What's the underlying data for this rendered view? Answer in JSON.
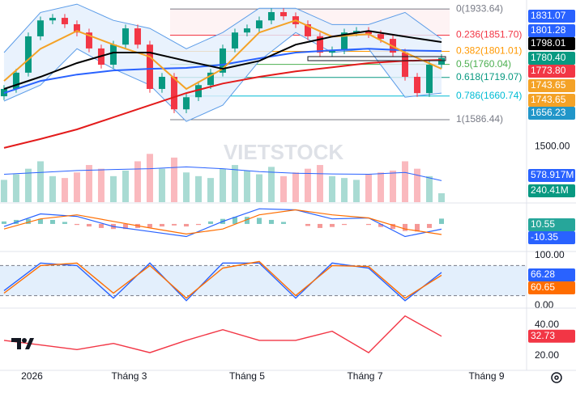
{
  "chart_data": [
    {
      "type": "candlestick",
      "watermark": "VIETSTOCK",
      "x": [
        0,
        1,
        2,
        3,
        4,
        5,
        6,
        7,
        8,
        9,
        10,
        11,
        12,
        13,
        14,
        15,
        16,
        17,
        18,
        19,
        20,
        21,
        22,
        23,
        24,
        25,
        26,
        27,
        28,
        29,
        30,
        31,
        32,
        33,
        34,
        35,
        36
      ],
      "open": [
        1660,
        1683,
        1734,
        1848,
        1898,
        1906,
        1886,
        1860,
        1810,
        1759,
        1822,
        1873,
        1822,
        1683,
        1721,
        1619,
        1657,
        1695,
        1734,
        1810,
        1860,
        1873,
        1898,
        1924,
        1911,
        1886,
        1848,
        1797,
        1804,
        1860,
        1865,
        1855,
        1840,
        1797,
        1721,
        1670,
        1759
      ],
      "high": [
        1695,
        1746,
        1860,
        1910,
        1918,
        1918,
        1898,
        1872,
        1822,
        1834,
        1885,
        1885,
        1834,
        1733,
        1733,
        1669,
        1707,
        1746,
        1822,
        1872,
        1885,
        1910,
        1936,
        1936,
        1923,
        1898,
        1860,
        1816,
        1872,
        1877,
        1877,
        1867,
        1852,
        1809,
        1733,
        1771,
        1792
      ],
      "low": [
        1648,
        1671,
        1722,
        1836,
        1886,
        1874,
        1848,
        1798,
        1747,
        1747,
        1810,
        1810,
        1671,
        1671,
        1607,
        1607,
        1645,
        1683,
        1722,
        1798,
        1848,
        1861,
        1886,
        1899,
        1874,
        1836,
        1785,
        1785,
        1792,
        1848,
        1843,
        1828,
        1785,
        1709,
        1658,
        1658,
        1747
      ],
      "close": [
        1683,
        1734,
        1848,
        1898,
        1906,
        1886,
        1860,
        1810,
        1759,
        1822,
        1873,
        1822,
        1683,
        1721,
        1619,
        1657,
        1695,
        1734,
        1810,
        1860,
        1873,
        1898,
        1924,
        1911,
        1886,
        1848,
        1797,
        1804,
        1860,
        1865,
        1855,
        1840,
        1797,
        1721,
        1670,
        1759,
        1780.4
      ],
      "up_color": "#089981",
      "down_color": "#f23645",
      "xlim": [
        -0.33,
        43
      ],
      "xticks": [
        {
          "value": 2.3,
          "label": "2026"
        },
        {
          "value": 10.3,
          "label": "Tháng 3"
        },
        {
          "value": 20,
          "label": "Tháng 5"
        },
        {
          "value": 29.7,
          "label": "Tháng 7"
        },
        {
          "value": 39.7,
          "label": "Tháng 9"
        }
      ],
      "ylim": [
        1480,
        1962
      ],
      "bollinger": {
        "color": "#5b9ce8",
        "fill": "#e3effc",
        "x": [
          0,
          3,
          6,
          9,
          12,
          15,
          18,
          21,
          24,
          27,
          30,
          33,
          36
        ],
        "upper": [
          1797,
          1923,
          1949,
          1898,
          1873,
          1809,
          1860,
          1936,
          1936,
          1885,
          1885,
          1923,
          1840
        ],
        "lower": [
          1645,
          1695,
          1809,
          1746,
          1695,
          1581,
          1632,
          1771,
          1860,
          1797,
          1809,
          1657,
          1670
        ]
      },
      "overlays": [
        {
          "color": "#e31b1b",
          "x": [
            0,
            3,
            6,
            9,
            12,
            15,
            18,
            21,
            24,
            27,
            30,
            33,
            36
          ],
          "values": [
            1498,
            1526,
            1556,
            1594,
            1632,
            1670,
            1700,
            1721,
            1738,
            1751,
            1764,
            1771,
            1774
          ]
        },
        {
          "color": "#2962ff",
          "x": [
            0,
            3,
            6,
            9,
            12,
            15,
            18,
            21,
            24,
            27,
            30,
            33,
            36
          ],
          "values": [
            1670,
            1708,
            1728,
            1741,
            1746,
            1749,
            1759,
            1779,
            1797,
            1804,
            1809,
            1804,
            1802
          ]
        },
        {
          "color": "#f4a226",
          "x": [
            0,
            3,
            6,
            9,
            12,
            15,
            18,
            21,
            24,
            27,
            30,
            33,
            36
          ],
          "values": [
            1708,
            1809,
            1865,
            1822,
            1784,
            1683,
            1746,
            1860,
            1898,
            1847,
            1855,
            1797,
            1746
          ]
        },
        {
          "color": "#000000",
          "x": [
            0,
            3,
            6,
            9,
            12,
            15,
            18,
            21,
            24,
            27,
            30,
            33,
            36
          ],
          "values": [
            1683,
            1721,
            1764,
            1797,
            1797,
            1771,
            1746,
            1771,
            1822,
            1847,
            1865,
            1847,
            1830
          ]
        }
      ],
      "fib": [
        {
          "price": 1933.64,
          "label": "0(1933.64)",
          "color": "#787b86"
        },
        {
          "price": 1851.7,
          "label": "0.236(1851.70)",
          "color": "#f23645"
        },
        {
          "price": 1801.01,
          "label": "0.382(1801.01)",
          "color": "#ff9800"
        },
        {
          "price": 1760.04,
          "label": "0.5(1760.04)",
          "color": "#4caf50"
        },
        {
          "price": 1719.07,
          "label": "0.618(1719.07)",
          "color": "#089981"
        },
        {
          "price": 1660.74,
          "label": "0.786(1660.74)",
          "color": "#00bcd4"
        },
        {
          "price": 1586.44,
          "label": "1(1586.44)",
          "color": "#787b86"
        }
      ],
      "price_labels": {
        "values": [
          1831.07,
          1801.28,
          1798.01,
          1780.4,
          1773.8,
          1743.65,
          1743.65,
          1656.23
        ],
        "value_labels": [
          "1831.07",
          "1801.28",
          "1798.01",
          "1780.40",
          "1773.80",
          "1743.65",
          "1743.65",
          "1656.23"
        ],
        "colors": [
          "#2962ff",
          "#2962ff",
          "#000000",
          "#089981",
          "#f23645",
          "#f4a226",
          "#f4a226",
          "#2196c9"
        ]
      }
    },
    {
      "type": "bar",
      "values": [
        600,
        750,
        900,
        1100,
        700,
        650,
        800,
        1000,
        900,
        700,
        850,
        1100,
        1300,
        900,
        1200,
        800,
        700,
        650,
        900,
        1000,
        850,
        750,
        950,
        700,
        800,
        900,
        1000,
        700,
        650,
        600,
        750,
        800,
        850,
        1100,
        900,
        700,
        240.41
      ],
      "ylim": [
        0,
        1850
      ],
      "yticks": [
        {
          "value": 1500,
          "label": "1500.00"
        }
      ],
      "ma": {
        "color": "#2962ff",
        "x": [
          0,
          3,
          6,
          9,
          12,
          15,
          18,
          21,
          24,
          27,
          30,
          33,
          36
        ],
        "values": [
          750,
          800,
          850,
          880,
          900,
          950,
          900,
          820,
          780,
          760,
          750,
          800,
          578.917
        ]
      },
      "labels": {
        "values": [
          578.917,
          240.41
        ],
        "value_labels": [
          "578.917M",
          "240.41M"
        ],
        "colors": [
          "#2962ff",
          "#089981"
        ]
      }
    },
    {
      "type": "macd",
      "histogram": [
        5,
        8,
        10,
        10,
        8,
        4,
        -2,
        -5,
        -8,
        -10,
        -10,
        -8,
        -7,
        -5,
        -3,
        -5,
        -2,
        5,
        10,
        14,
        14,
        12,
        8,
        4,
        0,
        -4,
        -8,
        -6,
        -2,
        0,
        -2,
        -6,
        -10,
        -14,
        -15,
        -8,
        10.55
      ],
      "x": [
        0,
        3,
        6,
        9,
        12,
        15,
        18,
        21,
        24,
        27,
        30,
        33,
        36
      ],
      "macd": [
        -5,
        20,
        15,
        -5,
        -15,
        -25,
        5,
        30,
        28,
        10,
        12,
        -25,
        -10.35
      ],
      "signal": [
        -10,
        10,
        18,
        5,
        -8,
        -20,
        -10,
        18,
        28,
        18,
        12,
        -10,
        -21
      ],
      "colors": {
        "macd": "#2962ff",
        "signal": "#ff6d00",
        "up": "#26a69a",
        "down": "#ef5350"
      },
      "ylim": [
        -45,
        40
      ],
      "labels": {
        "values": [
          10.55,
          -10.35
        ],
        "colors": [
          "#26a69a",
          "#2962ff"
        ]
      }
    },
    {
      "type": "line",
      "x": [
        0,
        3,
        6,
        9,
        12,
        15,
        18,
        21,
        24,
        27,
        30,
        33,
        36
      ],
      "series": [
        {
          "color": "#2962ff",
          "values": [
            30,
            85,
            80,
            15,
            85,
            10,
            85,
            85,
            15,
            85,
            75,
            10,
            66.28
          ]
        },
        {
          "color": "#ff6d00",
          "values": [
            25,
            80,
            85,
            25,
            80,
            15,
            75,
            88,
            20,
            80,
            78,
            15,
            60.65
          ]
        }
      ],
      "bands": [
        20,
        80
      ],
      "band_fill": "#e3effc",
      "ylim": [
        0,
        100
      ],
      "yticks": [
        {
          "value": 100,
          "label": "100.00"
        },
        {
          "value": 0,
          "label": "0.00"
        }
      ]
    },
    {
      "type": "line",
      "x": [
        0,
        3,
        6,
        9,
        12,
        15,
        18,
        21,
        24,
        27,
        30,
        33,
        36
      ],
      "series": [
        {
          "color": "#f23645",
          "values": [
            30,
            27,
            24,
            28,
            22,
            30,
            37,
            30,
            30,
            36,
            22,
            46,
            32.73
          ]
        }
      ],
      "ylim": [
        12,
        49
      ],
      "yticks": [
        {
          "value": 40,
          "label": "40.00"
        },
        {
          "value": 20,
          "label": "20.00"
        }
      ]
    }
  ]
}
